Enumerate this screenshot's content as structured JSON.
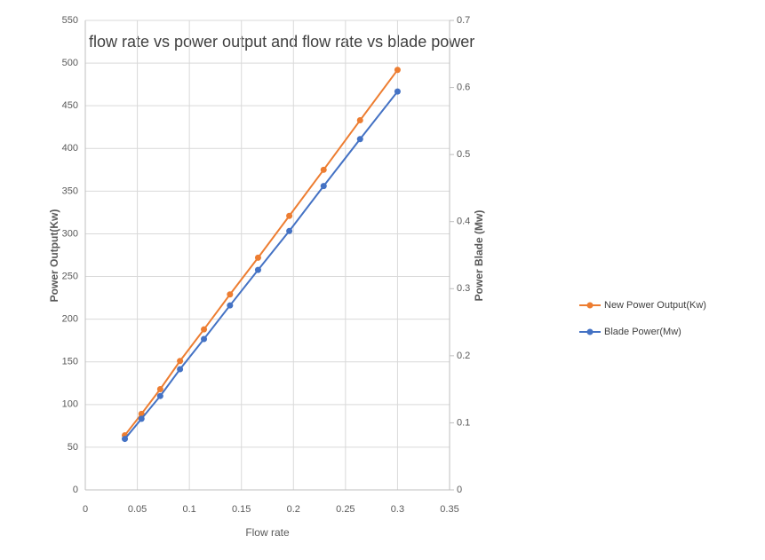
{
  "chart_data": {
    "type": "line",
    "title": "flow rate vs power output and flow rate vs blade power",
    "x_label": "Flow rate",
    "y_label": "Power Output(Kw)",
    "y2_label": "Power Blade (Mw)",
    "x": [
      0.038,
      0.054,
      0.072,
      0.091,
      0.114,
      0.139,
      0.166,
      0.196,
      0.229,
      0.264,
      0.3
    ],
    "series": [
      {
        "name": "New Power Output(Kw)",
        "color": "#ed7d31",
        "values": [
          64,
          89,
          118,
          151,
          188,
          229,
          272,
          321,
          375,
          433,
          492
        ]
      },
      {
        "name": "Blade Power(Mw)",
        "color": "#4472c4",
        "axis": "y2",
        "values": [
          0.076,
          0.106,
          0.14,
          0.18,
          0.225,
          0.275,
          0.328,
          0.386,
          0.453,
          0.523,
          0.594
        ]
      }
    ],
    "xlim": [
      0,
      0.35
    ],
    "xticks": [
      0,
      0.05,
      0.1,
      0.15,
      0.2,
      0.25,
      0.3,
      0.35
    ],
    "ylim": [
      0,
      550
    ],
    "yticks": [
      0,
      50,
      100,
      150,
      200,
      250,
      300,
      350,
      400,
      450,
      500,
      550
    ],
    "y2lim": [
      0,
      0.7
    ],
    "y2ticks": [
      0,
      0.1,
      0.2,
      0.3,
      0.4,
      0.5,
      0.6,
      0.7
    ],
    "grid": true,
    "legend": "right"
  }
}
